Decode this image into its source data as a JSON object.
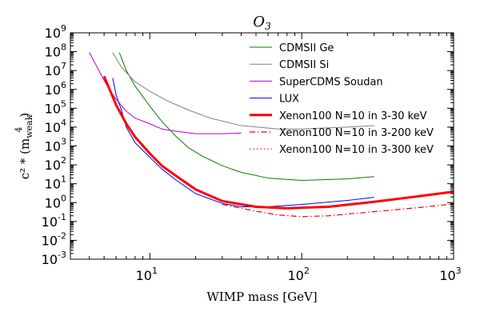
{
  "chart_data": {
    "type": "line",
    "title": "O",
    "title_sub": "3",
    "xlabel": "WIMP mass [GeV]",
    "ylabel": "c² * (m",
    "ylabel_sub": "weak",
    "ylabel_sup": "4",
    "ylabel_close": ")",
    "xscale": "log",
    "yscale": "log",
    "xlim": [
      3,
      1000
    ],
    "ylim": [
      0.001,
      1000000000
    ],
    "x_ticks": [
      {
        "value": 10,
        "base": "10",
        "exp": "1"
      },
      {
        "value": 100,
        "base": "10",
        "exp": "2"
      },
      {
        "value": 1000,
        "base": "10",
        "exp": "3"
      }
    ],
    "y_ticks": [
      {
        "value": 0.001,
        "base": "10",
        "exp": "-3"
      },
      {
        "value": 0.01,
        "base": "10",
        "exp": "-2"
      },
      {
        "value": 0.1,
        "base": "10",
        "exp": "-1"
      },
      {
        "value": 1,
        "base": "10",
        "exp": "0"
      },
      {
        "value": 10,
        "base": "10",
        "exp": "1"
      },
      {
        "value": 100,
        "base": "10",
        "exp": "2"
      },
      {
        "value": 1000,
        "base": "10",
        "exp": "3"
      },
      {
        "value": 10000,
        "base": "10",
        "exp": "4"
      },
      {
        "value": 100000,
        "base": "10",
        "exp": "5"
      },
      {
        "value": 1000000,
        "base": "10",
        "exp": "6"
      },
      {
        "value": 10000000,
        "base": "10",
        "exp": "7"
      },
      {
        "value": 100000000,
        "base": "10",
        "exp": "8"
      },
      {
        "value": 1000000000,
        "base": "10",
        "exp": "9"
      }
    ],
    "legend_position": "top-right",
    "series": [
      {
        "name": "CDMSII Ge",
        "color": "#008000",
        "style": "solid",
        "width": 1,
        "points": [
          [
            6.3,
            90000000
          ],
          [
            7,
            10000000
          ],
          [
            8,
            1500000
          ],
          [
            10,
            130000
          ],
          [
            12,
            20000
          ],
          [
            15,
            3000
          ],
          [
            18,
            800
          ],
          [
            22,
            300
          ],
          [
            30,
            90
          ],
          [
            40,
            40
          ],
          [
            60,
            20
          ],
          [
            100,
            15
          ],
          [
            200,
            18
          ],
          [
            300,
            24
          ]
        ]
      },
      {
        "name": "CDMSII Si",
        "color": "#808080",
        "style": "solid",
        "width": 1,
        "points": [
          [
            5.7,
            90000000
          ],
          [
            6.5,
            15000000
          ],
          [
            8,
            2500000
          ],
          [
            10,
            800000
          ],
          [
            13,
            250000
          ],
          [
            18,
            80000
          ],
          [
            25,
            30000
          ],
          [
            40,
            12000
          ],
          [
            70,
            8000
          ],
          [
            100,
            8000
          ],
          [
            200,
            10000
          ],
          [
            300,
            12000
          ]
        ]
      },
      {
        "name": "SuperCDMS Soudan",
        "color": "#bf00bf",
        "style": "solid",
        "width": 1,
        "points": [
          [
            4,
            90000000
          ],
          [
            4.5,
            15000000
          ],
          [
            5,
            3000000
          ],
          [
            5.5,
            800000
          ],
          [
            6,
            300000
          ],
          [
            7,
            70000
          ],
          [
            8,
            30000
          ],
          [
            10,
            15000
          ],
          [
            12,
            8000
          ],
          [
            15,
            6000
          ],
          [
            20,
            4500
          ],
          [
            30,
            4500
          ],
          [
            40,
            4800
          ]
        ]
      },
      {
        "name": "LUX",
        "color": "#0000ff",
        "style": "solid",
        "width": 1,
        "points": [
          [
            5.7,
            4000000
          ],
          [
            6,
            500000
          ],
          [
            6.5,
            80000
          ],
          [
            7,
            10000
          ],
          [
            8,
            1500
          ],
          [
            10,
            250
          ],
          [
            12,
            60
          ],
          [
            15,
            15
          ],
          [
            20,
            3
          ],
          [
            30,
            0.9
          ],
          [
            40,
            0.6
          ],
          [
            60,
            0.6
          ],
          [
            100,
            0.8
          ],
          [
            200,
            1.3
          ],
          [
            300,
            1.9
          ]
        ]
      },
      {
        "name": "Xenon100 N=10 in 3-30 keV",
        "color": "#ff0000",
        "style": "solid",
        "width": 3,
        "points": [
          [
            5,
            5000000
          ],
          [
            5.5,
            800000
          ],
          [
            6,
            150000
          ],
          [
            7,
            15000
          ],
          [
            8,
            3000
          ],
          [
            10,
            400
          ],
          [
            12,
            90
          ],
          [
            15,
            25
          ],
          [
            20,
            5
          ],
          [
            30,
            1.2
          ],
          [
            50,
            0.6
          ],
          [
            80,
            0.5
          ],
          [
            150,
            0.6
          ],
          [
            300,
            1.1
          ],
          [
            600,
            2.2
          ],
          [
            1000,
            3.8
          ]
        ]
      },
      {
        "name": "Xenon100 N=10 in 3-200 keV",
        "color": "#ff0000",
        "style": "dashdot",
        "width": 1.2,
        "points": [
          [
            30,
            0.8
          ],
          [
            40,
            0.5
          ],
          [
            50,
            0.35
          ],
          [
            70,
            0.22
          ],
          [
            100,
            0.18
          ],
          [
            150,
            0.2
          ],
          [
            300,
            0.33
          ],
          [
            600,
            0.55
          ],
          [
            1000,
            0.85
          ]
        ]
      },
      {
        "name": "Xenon100 N=10 in 3-300 keV",
        "color": "#ff0000",
        "style": "dotted",
        "width": 1.2,
        "points": []
      }
    ]
  }
}
